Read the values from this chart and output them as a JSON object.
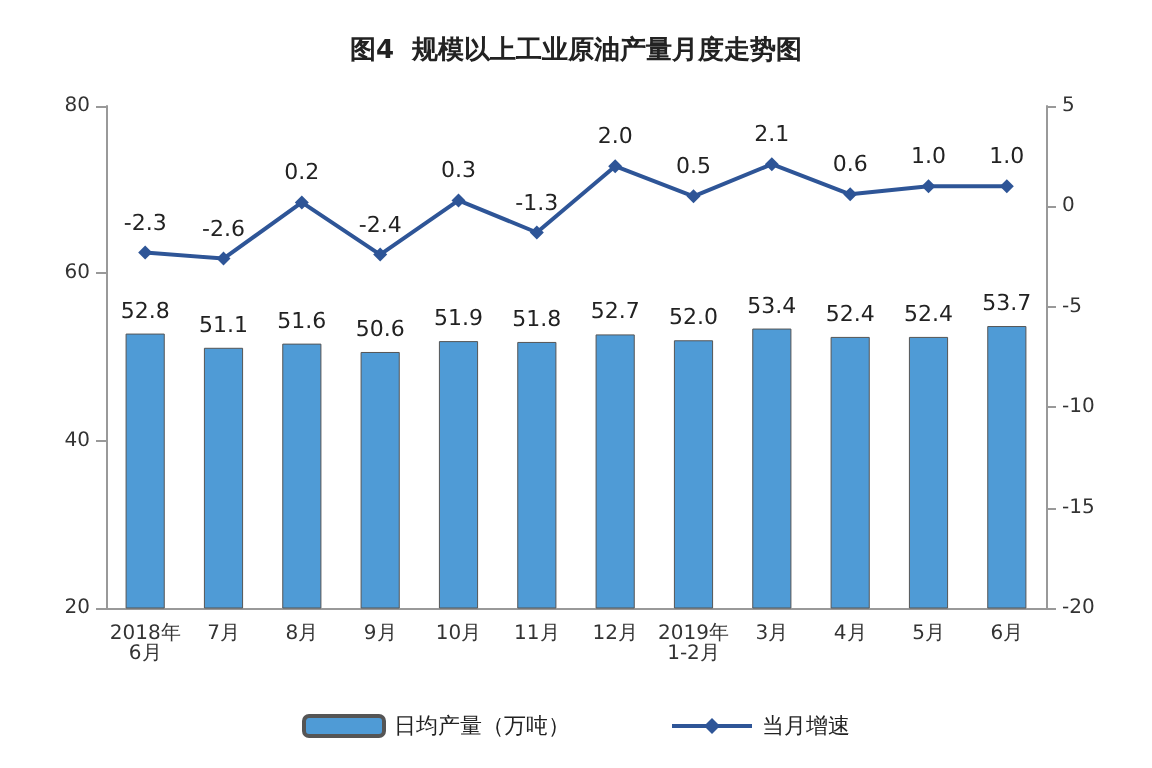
{
  "chart_data": {
    "type": "bar",
    "title": "图4  规模以上工业原油产量月度走势图",
    "categories": [
      "2018年\n6月",
      "7月",
      "8月",
      "9月",
      "10月",
      "11月",
      "12月",
      "2019年\n1-2月",
      "3月",
      "4月",
      "5月",
      "6月"
    ],
    "series": [
      {
        "name": "日均产量（万吨）",
        "color": "#4f9bd6",
        "values": [
          52.8,
          51.1,
          51.6,
          50.6,
          51.9,
          51.8,
          52.7,
          52.0,
          53.4,
          52.4,
          52.4,
          53.7
        ],
        "value_labels": [
          "52.8",
          "51.1",
          "51.6",
          "50.6",
          "51.9",
          "51.8",
          "52.7",
          "52.0",
          "53.4",
          "52.4",
          "52.4",
          "53.7"
        ]
      },
      {
        "name": "当月增速",
        "type": "line",
        "axis": "y2",
        "color": "#2e5597",
        "values": [
          -2.3,
          -2.6,
          0.2,
          -2.4,
          0.3,
          -1.3,
          2.0,
          0.5,
          2.1,
          0.6,
          1.0,
          1.0
        ],
        "value_labels": [
          "-2.3",
          "-2.6",
          "0.2",
          "-2.4",
          "0.3",
          "-1.3",
          "2.0",
          "0.5",
          "2.1",
          "0.6",
          "1.0",
          "1.0"
        ]
      }
    ],
    "ylim": [
      20,
      80
    ],
    "yticks": [
      20,
      40,
      60,
      80
    ],
    "y2lim": [
      -20,
      5
    ],
    "y2ticks": [
      -20,
      -15,
      -10,
      -5,
      0,
      5
    ],
    "legend": "bottom",
    "grid": false,
    "marker": "diamond",
    "line_style": "solid"
  }
}
